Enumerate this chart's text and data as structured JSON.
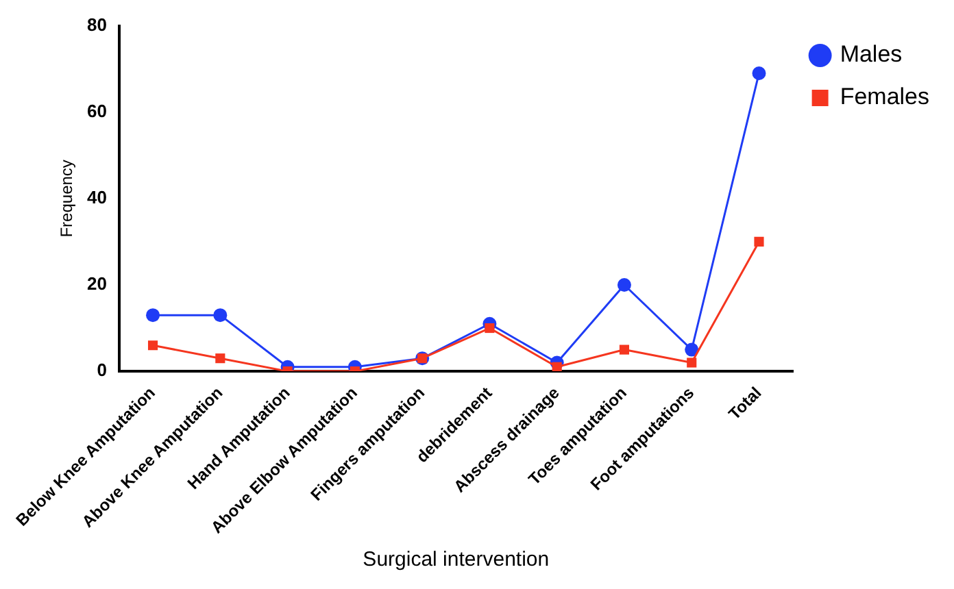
{
  "chart_data": {
    "type": "line",
    "xlabel": "Surgical intervention",
    "ylabel": "Frequency",
    "categories": [
      "Below Knee Amputation",
      "Above Knee Amputation",
      "Hand Amputation",
      "Above Elbow Amputation",
      "Fingers amputation",
      "debridement",
      "Abscess drainage",
      "Toes amputation",
      "Foot amputations",
      "Total"
    ],
    "series": [
      {
        "name": "Males",
        "color": "#1f3cf5",
        "marker": "circle",
        "values": [
          13,
          13,
          1,
          1,
          3,
          11,
          2,
          20,
          5,
          69
        ]
      },
      {
        "name": "Females",
        "color": "#f5361f",
        "marker": "square",
        "values": [
          6,
          3,
          0,
          0,
          3,
          10,
          1,
          5,
          2,
          30
        ]
      }
    ],
    "ylim": [
      0,
      80
    ],
    "yticks": [
      0,
      20,
      40,
      60,
      80
    ],
    "grid": false,
    "legend": "top right"
  }
}
